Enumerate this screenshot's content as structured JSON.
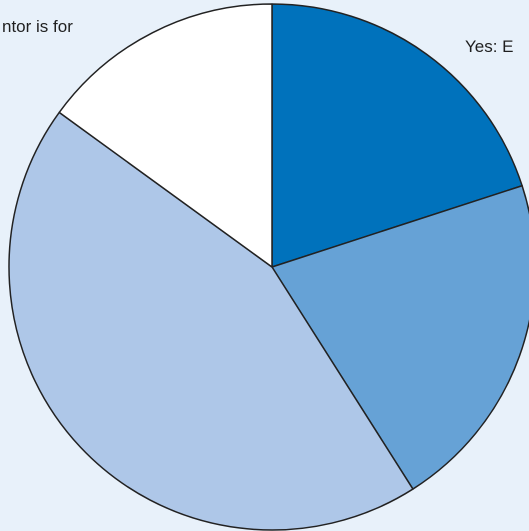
{
  "chart_data": {
    "type": "pie",
    "title": "",
    "slices": [
      {
        "label": "Yes: E",
        "value": 20.0,
        "color": "#0072bc"
      },
      {
        "label": "",
        "value": 21.0,
        "color": "#66a2d6"
      },
      {
        "label": "",
        "value": 44.0,
        "color": "#aec7e8"
      },
      {
        "label": "ntor is for",
        "value": 15.0,
        "color": "#ffffff"
      }
    ],
    "start_angle_deg": 0,
    "direction": "clockwise",
    "legend": "none"
  },
  "colors": {
    "background": "#e8f1fa",
    "slice_border": "#222222"
  },
  "labels": {
    "left": "ntor is for",
    "right": "Yes: E"
  }
}
